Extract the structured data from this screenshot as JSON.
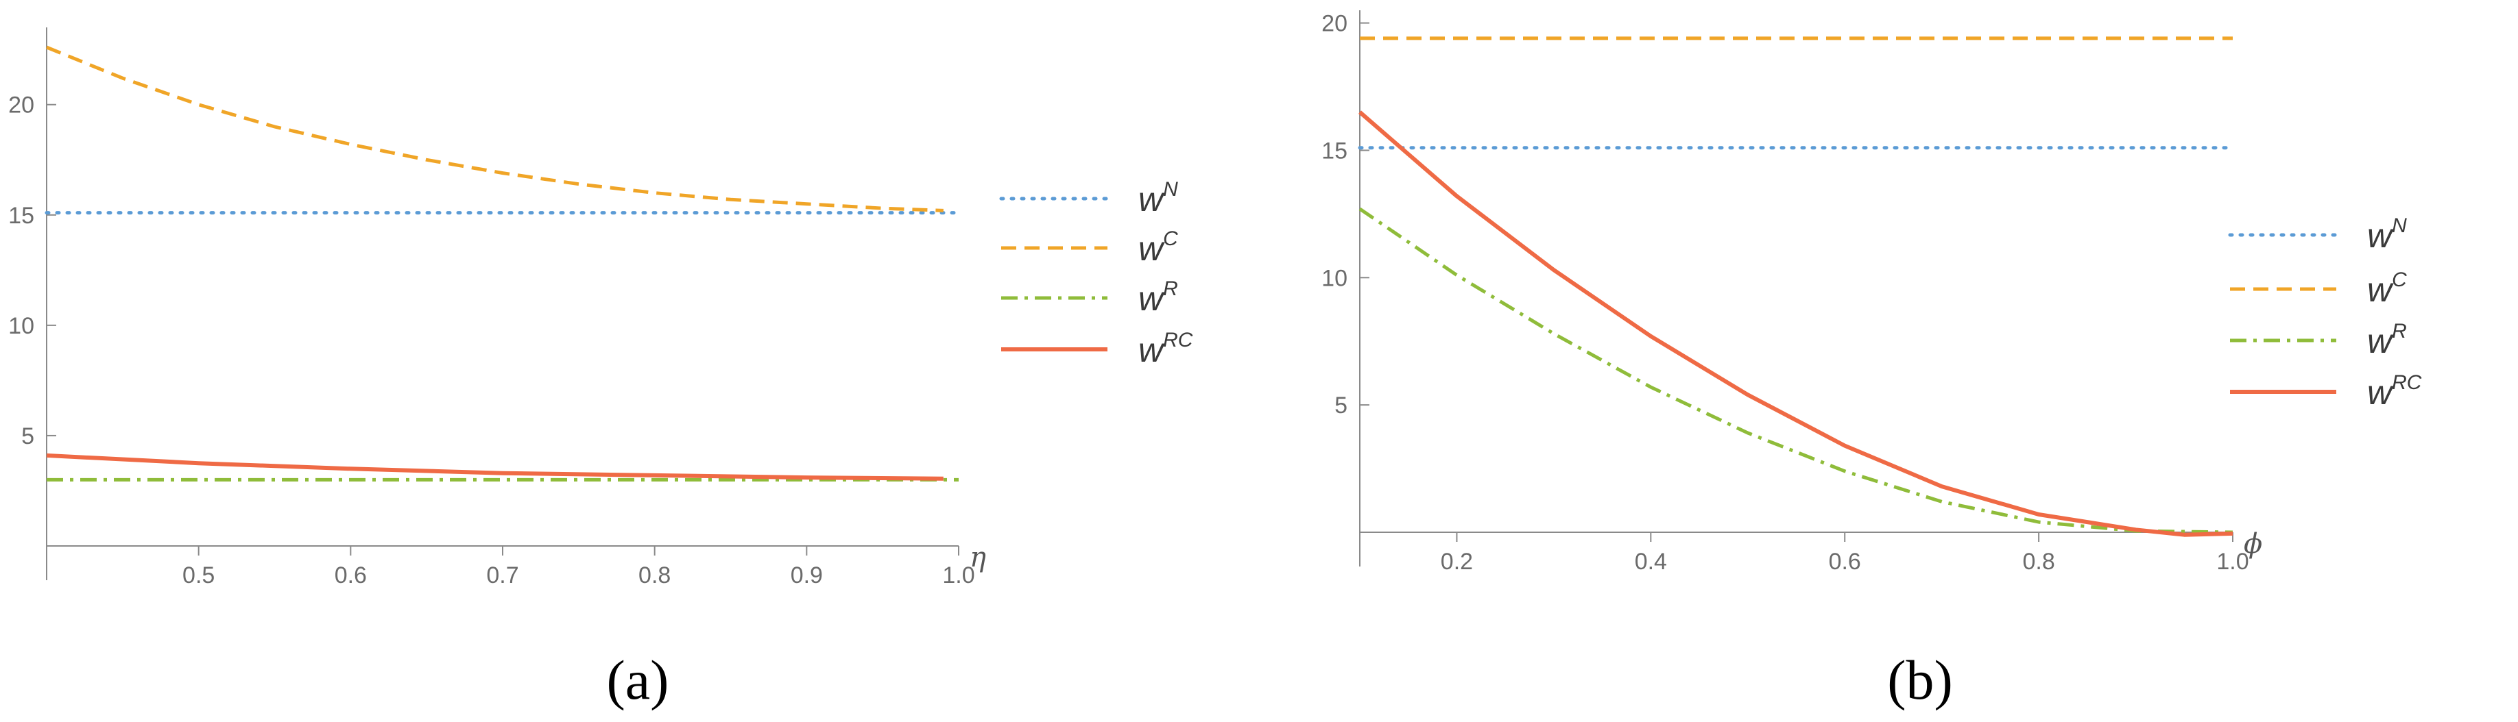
{
  "colors": {
    "wN": "#5b9bd5",
    "wC": "#f0a527",
    "wR": "#8fbc3a",
    "wRC": "#ef6a45",
    "axis": "#8a8a8a",
    "text": "#6b6b6b"
  },
  "chart_data": [
    {
      "type": "line",
      "caption": "(a)",
      "xlabel": "η",
      "ylabel": "",
      "xlim": [
        0.4,
        1.0
      ],
      "ylim": [
        0,
        23.5
      ],
      "xticks": [
        0.5,
        0.6,
        0.7,
        0.8,
        0.9,
        1.0
      ],
      "xtick_labels": [
        "0.5",
        "0.6",
        "0.7",
        "0.8",
        "0.9",
        "1.0"
      ],
      "yticks": [
        5,
        10,
        15,
        20
      ],
      "ytick_labels": [
        "5",
        "10",
        "15",
        "20"
      ],
      "legend_position": "right",
      "series": [
        {
          "base": "w",
          "sup": "N",
          "style": "dotted",
          "color": "#5b9bd5",
          "x": [
            0.4,
            1.0
          ],
          "y": [
            15.1,
            15.1
          ]
        },
        {
          "base": "w",
          "sup": "C",
          "style": "dashed",
          "color": "#f0a527",
          "x": [
            0.4,
            0.45,
            0.5,
            0.55,
            0.6,
            0.65,
            0.7,
            0.75,
            0.8,
            0.85,
            0.9,
            0.95,
            0.99
          ],
          "y": [
            22.6,
            21.2,
            20.0,
            19.0,
            18.2,
            17.5,
            16.9,
            16.4,
            16.0,
            15.7,
            15.5,
            15.3,
            15.2
          ]
        },
        {
          "base": "w",
          "sup": "R",
          "style": "dashdot",
          "color": "#8fbc3a",
          "x": [
            0.4,
            1.0
          ],
          "y": [
            3.0,
            3.0
          ]
        },
        {
          "base": "w",
          "sup": "RC",
          "style": "solid",
          "color": "#ef6a45",
          "x": [
            0.4,
            0.5,
            0.6,
            0.7,
            0.8,
            0.9,
            0.99
          ],
          "y": [
            4.1,
            3.75,
            3.5,
            3.3,
            3.2,
            3.1,
            3.05
          ]
        }
      ]
    },
    {
      "type": "line",
      "caption": "(b)",
      "xlabel": "ϕ",
      "ylabel": "",
      "xlim": [
        0.1,
        1.0
      ],
      "ylim": [
        0,
        20.5
      ],
      "xticks": [
        0.2,
        0.4,
        0.6,
        0.8,
        1.0
      ],
      "xtick_labels": [
        "0.2",
        "0.4",
        "0.6",
        "0.8",
        "1.0"
      ],
      "yticks": [
        5,
        10,
        15,
        20
      ],
      "ytick_labels": [
        "5",
        "10",
        "15",
        "20"
      ],
      "legend_position": "right",
      "series": [
        {
          "base": "w",
          "sup": "N",
          "style": "dotted",
          "color": "#5b9bd5",
          "x": [
            0.1,
            1.0
          ],
          "y": [
            15.1,
            15.1
          ]
        },
        {
          "base": "w",
          "sup": "C",
          "style": "dashed",
          "color": "#f0a527",
          "x": [
            0.1,
            1.0
          ],
          "y": [
            19.4,
            19.4
          ]
        },
        {
          "base": "w",
          "sup": "R",
          "style": "dashdot",
          "color": "#8fbc3a",
          "x": [
            0.1,
            0.2,
            0.3,
            0.4,
            0.5,
            0.6,
            0.7,
            0.8,
            0.9,
            1.0
          ],
          "y": [
            12.7,
            10.1,
            7.8,
            5.7,
            3.9,
            2.4,
            1.2,
            0.4,
            0.05,
            0
          ]
        },
        {
          "base": "w",
          "sup": "RC",
          "style": "solid",
          "color": "#ef6a45",
          "x": [
            0.1,
            0.2,
            0.3,
            0.4,
            0.5,
            0.6,
            0.7,
            0.8,
            0.9,
            0.95,
            1.0
          ],
          "y": [
            16.5,
            13.2,
            10.3,
            7.7,
            5.4,
            3.4,
            1.8,
            0.7,
            0.1,
            -0.1,
            -0.05
          ]
        }
      ]
    }
  ]
}
